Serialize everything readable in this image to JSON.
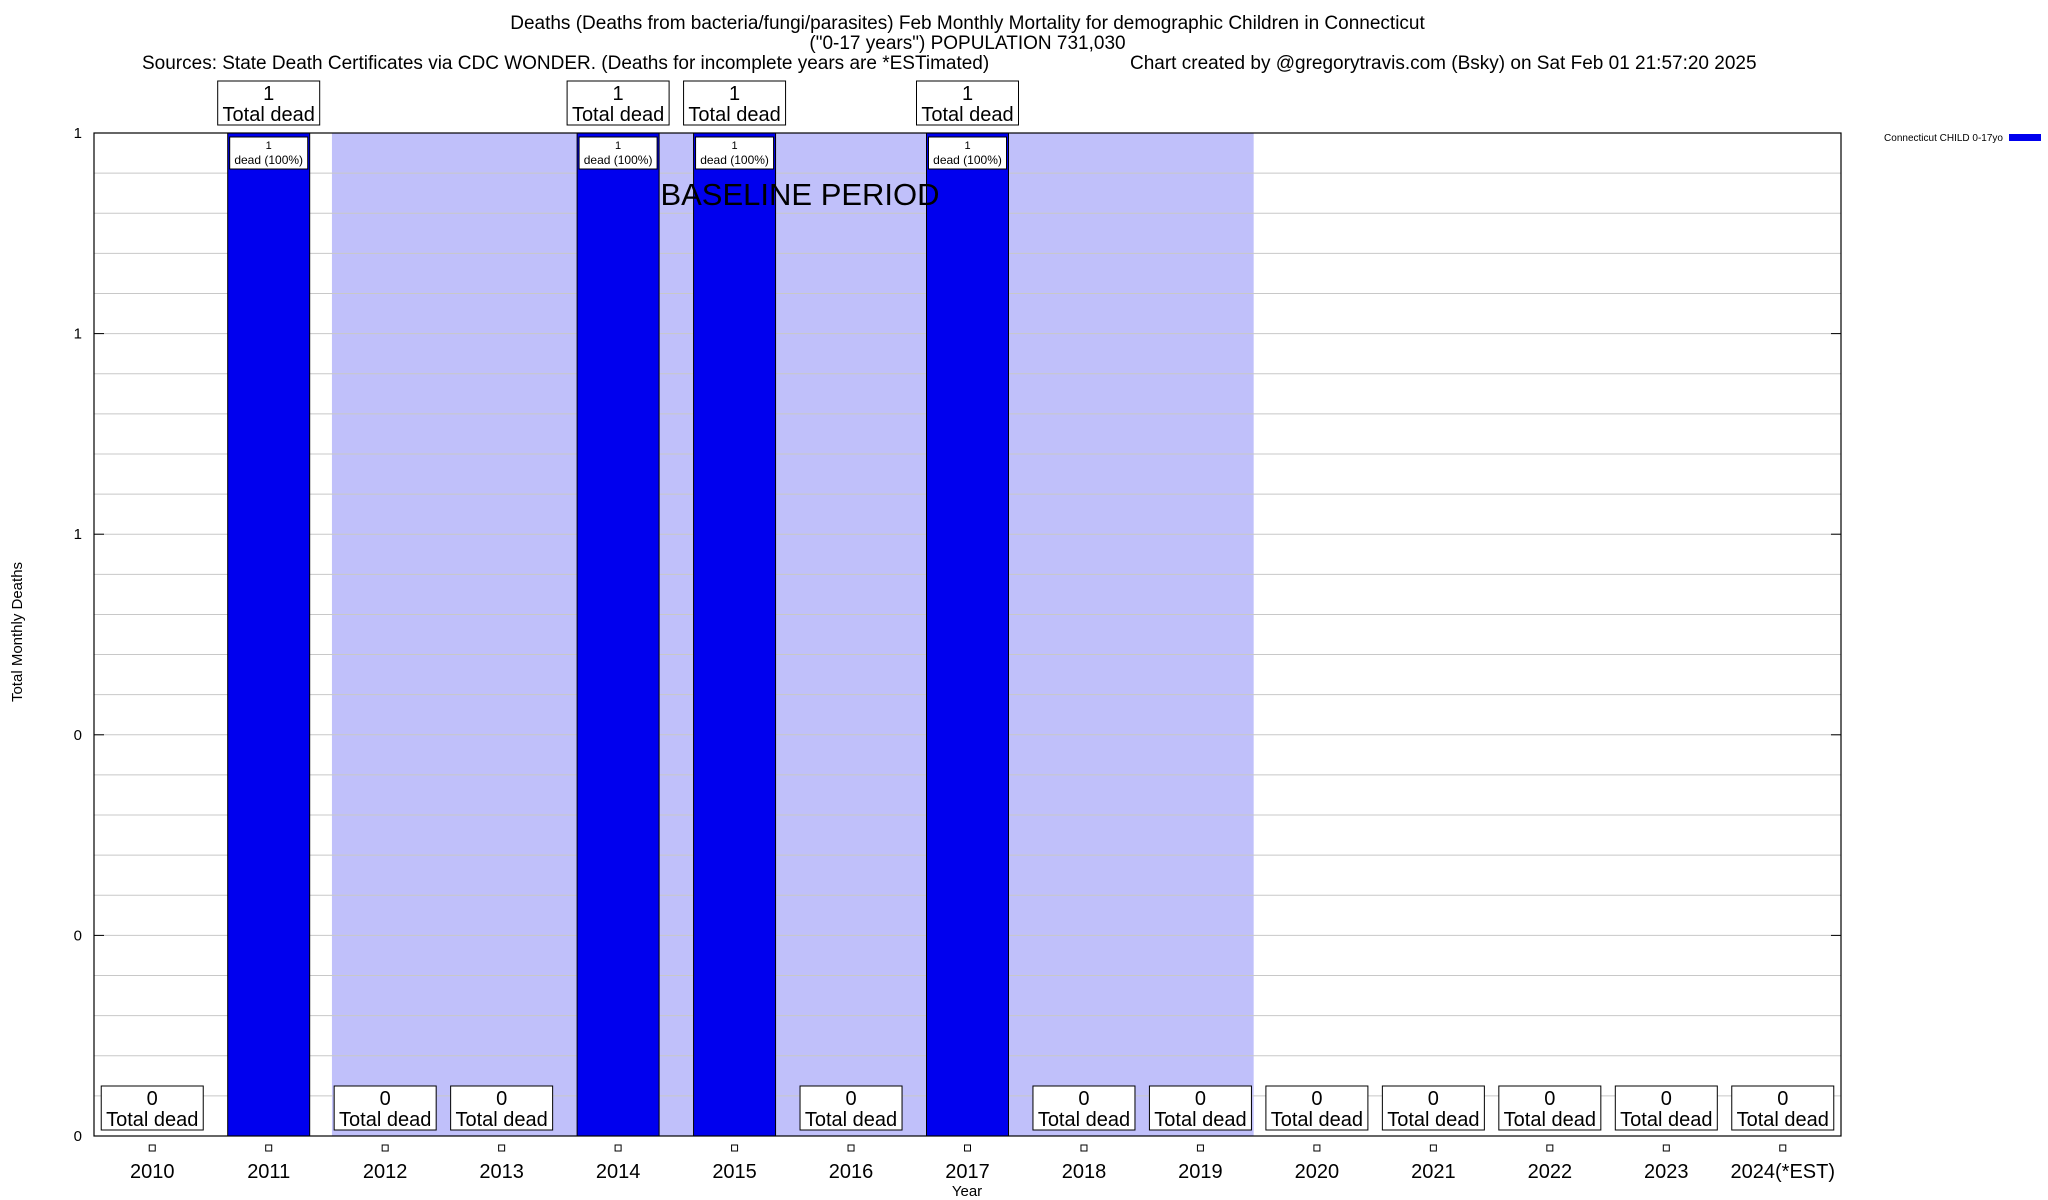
{
  "header": {
    "title_line1": "Deaths (Deaths from bacteria/fungi/parasites) Feb Monthly Mortality for demographic Children in Connecticut",
    "title_line2": "(\"0-17 years\") POPULATION 731,030",
    "sources": "Sources: State Death Certificates via CDC WONDER. (Deaths for incomplete years are *ESTimated)",
    "credit": "Chart created by @gregorytravis.com (Bsky) on Sat Feb 01 21:57:20 2025"
  },
  "chart_data": {
    "type": "bar",
    "title": "Deaths (Deaths from bacteria/fungi/parasites) Feb Monthly Mortality for demographic Children in Connecticut",
    "subtitle": "(\"0-17 years\") POPULATION 731,030",
    "xlabel": "Year",
    "ylabel": "Total Monthly Deaths",
    "categories": [
      "2010",
      "2011",
      "2012",
      "2013",
      "2014",
      "2015",
      "2016",
      "2017",
      "2018",
      "2019",
      "2020",
      "2021",
      "2022",
      "2023",
      "2024(*EST)"
    ],
    "series": [
      {
        "name": "Connecticut CHILD 0-17yo",
        "color": "#0000ee",
        "values": [
          0,
          1,
          0,
          0,
          1,
          1,
          0,
          1,
          0,
          0,
          0,
          0,
          0,
          0,
          0
        ]
      }
    ],
    "ylim": [
      0,
      1
    ],
    "ytick_labels": [
      "0",
      "0",
      "0",
      "1",
      "1",
      "1"
    ],
    "top_label_number": [
      "0",
      "1",
      "0",
      "0",
      "1",
      "1",
      "0",
      "1",
      "0",
      "0",
      "0",
      "0",
      "0",
      "0",
      "0"
    ],
    "top_label_text": "Total dead",
    "inner_label_number": "1",
    "inner_label_text": "dead (100%)",
    "baseline": {
      "label": "BASELINE PERIOD",
      "start": "2012",
      "end": "2019",
      "color": "#c0c0fa"
    },
    "legend_position": "top-right",
    "grid": true
  }
}
